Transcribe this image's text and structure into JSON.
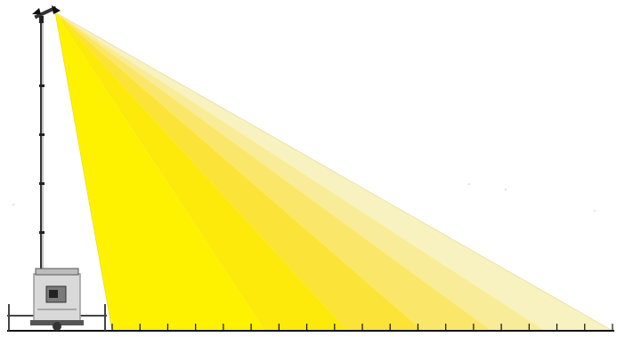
{
  "diagram": {
    "beam_colors": [
      "#fff200",
      "#fde90a",
      "#fbe437",
      "#fae76a",
      "#f8ec98",
      "#f7f2bf"
    ],
    "ground_color": "#111111",
    "tower_color": "#222222",
    "generator_color": "#9a9a9a",
    "tick_count": 19
  }
}
